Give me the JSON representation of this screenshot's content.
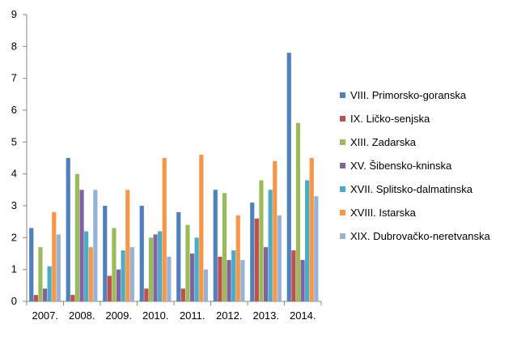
{
  "chart_data": {
    "type": "bar",
    "title": "",
    "xlabel": "",
    "ylabel": "",
    "ylim": [
      0,
      9
    ],
    "y_ticks": [
      "0",
      "1",
      "2",
      "3",
      "4",
      "5",
      "6",
      "7",
      "8",
      "9"
    ],
    "grid": false,
    "legend_position": "right",
    "categories": [
      "2007.",
      "2008.",
      "2009.",
      "2010.",
      "2011.",
      "2012.",
      "2013.",
      "2014."
    ],
    "series": [
      {
        "name": "VIII. Primorsko-goranska",
        "color": "#4F81BD",
        "values": [
          2.3,
          4.5,
          3.0,
          3.0,
          2.8,
          3.5,
          3.1,
          7.8
        ]
      },
      {
        "name": "IX. Ličko-senjska",
        "color": "#C0504D",
        "values": [
          0.2,
          0.2,
          0.8,
          0.4,
          0.4,
          1.4,
          2.6,
          1.6
        ]
      },
      {
        "name": "XIII. Zadarska",
        "color": "#9BBB59",
        "values": [
          1.7,
          4.0,
          2.3,
          2.0,
          2.4,
          3.4,
          3.8,
          5.6
        ]
      },
      {
        "name": "XV. Šibensko-kninska",
        "color": "#8064A2",
        "values": [
          0.4,
          3.5,
          1.0,
          2.1,
          1.5,
          1.3,
          1.7,
          1.3
        ]
      },
      {
        "name": "XVII. Splitsko-dalmatinska",
        "color": "#4BACC6",
        "values": [
          1.1,
          2.2,
          1.6,
          2.2,
          2.0,
          1.6,
          3.5,
          3.8
        ]
      },
      {
        "name": "XVIII. Istarska",
        "color": "#F79646",
        "values": [
          2.8,
          1.7,
          3.5,
          4.5,
          4.6,
          2.7,
          4.4,
          4.5
        ]
      },
      {
        "name": "XIX. Dubrovačko-neretvanska",
        "color": "#95B3D7",
        "values": [
          2.1,
          3.5,
          1.7,
          1.4,
          1.0,
          1.3,
          2.7,
          3.3
        ]
      }
    ]
  }
}
